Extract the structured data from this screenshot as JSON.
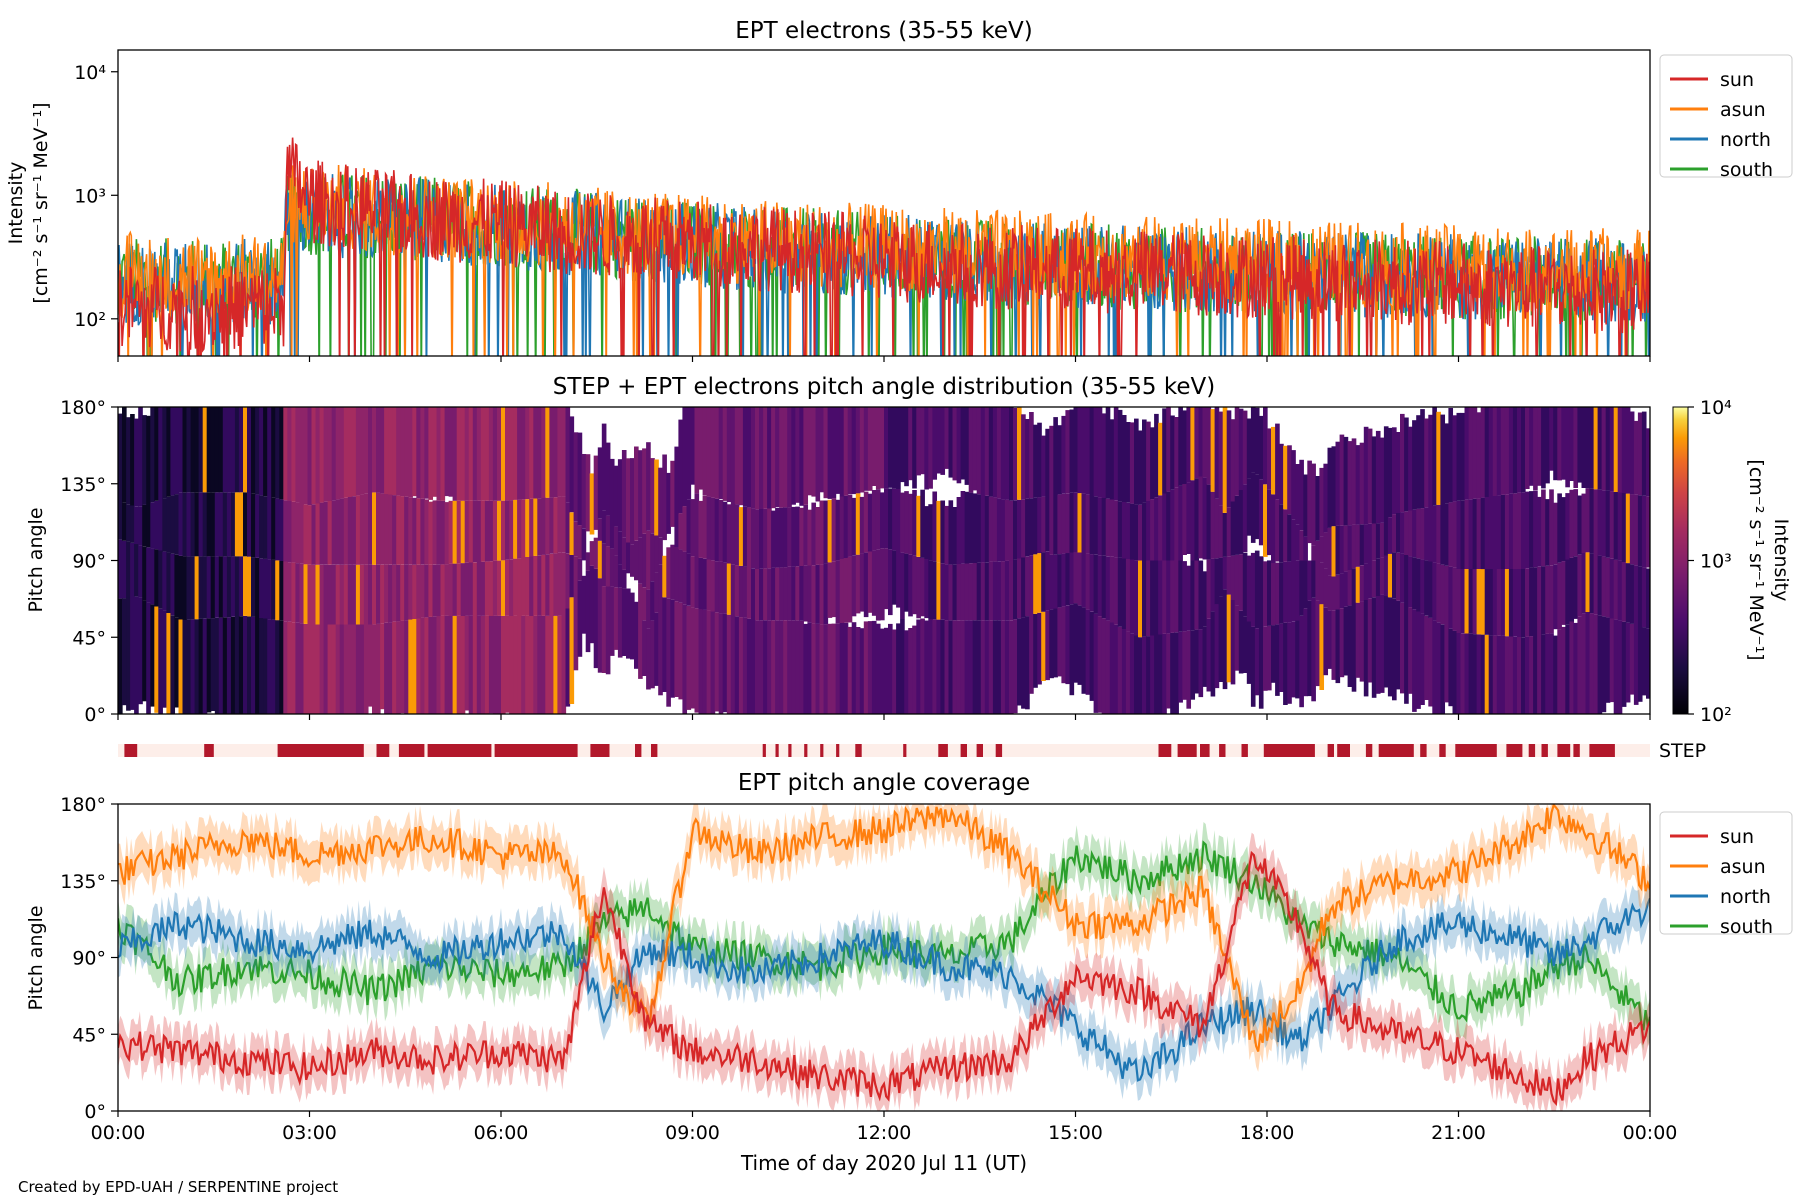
{
  "figure": {
    "credit": "Created by EPD-UAH / SERPENTINE project",
    "xlabel": "Time of day 2020 Jul 11 (UT)",
    "time_ticks": [
      "00:00",
      "03:00",
      "06:00",
      "09:00",
      "12:00",
      "15:00",
      "18:00",
      "21:00",
      "00:00"
    ]
  },
  "chart_data": [
    {
      "type": "line",
      "title": "EPT electrons (35-55 keV)",
      "ylabel": "Intensity",
      "ylabel_units": "[cm⁻² s⁻¹ sr⁻¹ MeV⁻¹]",
      "yscale": "log",
      "ylim": [
        50,
        15000
      ],
      "yticks": [
        {
          "value": 100,
          "label": "10²"
        },
        {
          "value": 1000,
          "label": "10³"
        },
        {
          "value": 10000,
          "label": "10⁴"
        }
      ],
      "xlim_hours": [
        0,
        24
      ],
      "legend": "outside-right",
      "series": [
        {
          "name": "sun",
          "color": "#d62728",
          "x_hours": [
            0,
            1,
            2,
            2.6,
            2.65,
            2.8,
            3,
            4,
            5,
            6,
            7,
            8,
            9,
            10,
            11,
            12,
            13,
            14,
            15,
            16,
            17,
            18,
            19,
            20,
            21,
            22,
            23,
            24
          ],
          "values": [
            130,
            120,
            125,
            130,
            1500,
            1300,
            900,
            750,
            650,
            600,
            500,
            450,
            420,
            380,
            340,
            300,
            280,
            260,
            250,
            240,
            230,
            220,
            210,
            200,
            190,
            180,
            170,
            160
          ]
        },
        {
          "name": "asun",
          "color": "#ff7f0e",
          "x_hours": [
            0,
            1,
            2,
            2.6,
            2.65,
            3,
            4,
            5,
            6,
            7,
            8,
            9,
            10,
            11,
            12,
            13,
            14,
            15,
            16,
            17,
            18,
            19,
            20,
            21,
            22,
            23,
            24
          ],
          "values": [
            230,
            220,
            220,
            220,
            900,
            850,
            750,
            680,
            620,
            560,
            500,
            460,
            420,
            400,
            380,
            360,
            340,
            320,
            310,
            300,
            290,
            280,
            270,
            260,
            250,
            245,
            240
          ]
        },
        {
          "name": "north",
          "color": "#1f77b4",
          "x_hours": [
            0,
            1,
            2,
            2.6,
            2.65,
            3,
            4,
            5,
            6,
            7,
            8,
            9,
            10,
            11,
            12,
            13,
            14,
            15,
            16,
            17,
            18,
            19,
            20,
            21,
            22,
            23,
            24
          ],
          "values": [
            200,
            190,
            200,
            200,
            700,
            680,
            650,
            620,
            560,
            500,
            450,
            400,
            370,
            340,
            320,
            300,
            280,
            270,
            260,
            250,
            240,
            230,
            225,
            220,
            210,
            205,
            200
          ]
        },
        {
          "name": "south",
          "color": "#2ca02c",
          "x_hours": [
            0,
            1,
            2,
            2.6,
            2.65,
            3,
            4,
            5,
            6,
            7,
            8,
            9,
            10,
            11,
            12,
            13,
            14,
            15,
            16,
            17,
            18,
            19,
            20,
            21,
            22,
            23,
            24
          ],
          "values": [
            210,
            200,
            205,
            210,
            750,
            720,
            680,
            640,
            580,
            520,
            460,
            410,
            380,
            350,
            320,
            300,
            285,
            270,
            260,
            250,
            240,
            230,
            225,
            215,
            210,
            205,
            200
          ]
        }
      ]
    },
    {
      "type": "heatmap",
      "title": "STEP + EPT electrons pitch angle distribution (35-55 keV)",
      "ylabel": "Pitch angle",
      "ylim": [
        0,
        180
      ],
      "yticks": [
        "0°",
        "45°",
        "90°",
        "135°",
        "180°"
      ],
      "colorbar": {
        "label": "Intensity",
        "units": "[cm⁻² s⁻¹ sr⁻¹ MeV⁻¹]",
        "scale": "log",
        "range": [
          100,
          10000
        ],
        "tick_labels": [
          "10²",
          "10³",
          "10⁴"
        ],
        "colormap": "inferno"
      }
    },
    {
      "type": "timeline",
      "label": "STEP",
      "on_color": "#b2182b",
      "off_color": "#fdeee9",
      "on_intervals_hours": [
        [
          0.1,
          0.3
        ],
        [
          1.35,
          1.5
        ],
        [
          2.5,
          3.85
        ],
        [
          4.05,
          4.25
        ],
        [
          4.4,
          4.8
        ],
        [
          4.85,
          5.85
        ],
        [
          5.9,
          7.2
        ],
        [
          7.4,
          7.7
        ],
        [
          8.1,
          8.2
        ],
        [
          8.35,
          8.45
        ],
        [
          10.1,
          10.15
        ],
        [
          10.3,
          10.35
        ],
        [
          10.5,
          10.55
        ],
        [
          10.75,
          10.8
        ],
        [
          11.0,
          11.05
        ],
        [
          11.25,
          11.3
        ],
        [
          11.55,
          11.65
        ],
        [
          12.3,
          12.35
        ],
        [
          12.85,
          13.0
        ],
        [
          13.2,
          13.3
        ],
        [
          13.45,
          13.55
        ],
        [
          13.75,
          13.85
        ],
        [
          16.3,
          16.5
        ],
        [
          16.6,
          16.9
        ],
        [
          16.95,
          17.1
        ],
        [
          17.25,
          17.35
        ],
        [
          17.6,
          17.7
        ],
        [
          17.95,
          18.75
        ],
        [
          18.95,
          19.05
        ],
        [
          19.1,
          19.3
        ],
        [
          19.55,
          19.65
        ],
        [
          19.75,
          20.3
        ],
        [
          20.4,
          20.5
        ],
        [
          20.7,
          20.8
        ],
        [
          20.95,
          21.6
        ],
        [
          21.75,
          22.0
        ],
        [
          22.1,
          22.2
        ],
        [
          22.3,
          22.4
        ],
        [
          22.55,
          22.75
        ],
        [
          22.8,
          22.9
        ],
        [
          23.05,
          23.45
        ]
      ]
    },
    {
      "type": "line",
      "title": "EPT pitch angle coverage",
      "ylabel": "Pitch angle",
      "ylim": [
        0,
        180
      ],
      "yticks": [
        "0°",
        "45°",
        "90°",
        "135°",
        "180°"
      ],
      "xlim_hours": [
        0,
        24
      ],
      "legend": "outside-right",
      "series": [
        {
          "name": "sun",
          "color": "#d62728",
          "x_hours": [
            0,
            1,
            2,
            3,
            4,
            5,
            6,
            7,
            7.6,
            8.3,
            9,
            10,
            11,
            12,
            13,
            14,
            15,
            16,
            17,
            17.8,
            18.5,
            19,
            20,
            21,
            22,
            22.5,
            23,
            24
          ],
          "values": [
            40,
            35,
            30,
            25,
            35,
            30,
            35,
            30,
            130,
            50,
            35,
            30,
            20,
            15,
            25,
            30,
            80,
            70,
            50,
            150,
            110,
            60,
            45,
            35,
            20,
            10,
            30,
            50
          ]
        },
        {
          "name": "asun",
          "color": "#ff7f0e",
          "x_hours": [
            0,
            1,
            2,
            3,
            4,
            5,
            6,
            7,
            7.6,
            8.3,
            9,
            10,
            11,
            12,
            13,
            14,
            15,
            16,
            17,
            17.8,
            18.5,
            19,
            20,
            21,
            22,
            22.5,
            23,
            24
          ],
          "values": [
            140,
            150,
            160,
            150,
            155,
            160,
            150,
            150,
            90,
            50,
            165,
            150,
            160,
            165,
            175,
            150,
            110,
            110,
            130,
            40,
            70,
            120,
            135,
            140,
            160,
            175,
            165,
            135
          ]
        },
        {
          "name": "north",
          "color": "#1f77b4",
          "x_hours": [
            0,
            1,
            2,
            3,
            4,
            5,
            6,
            7,
            7.6,
            8.3,
            9,
            10,
            11,
            12,
            13,
            14,
            15,
            16,
            17,
            17.8,
            18.5,
            19,
            20,
            21,
            22,
            22.5,
            23,
            24
          ],
          "values": [
            95,
            110,
            100,
            95,
            105,
            90,
            100,
            105,
            60,
            95,
            90,
            80,
            90,
            100,
            85,
            80,
            50,
            20,
            50,
            60,
            40,
            60,
            100,
            110,
            100,
            90,
            100,
            120
          ]
        },
        {
          "name": "south",
          "color": "#2ca02c",
          "x_hours": [
            0,
            1,
            2,
            3,
            4,
            5,
            6,
            7,
            7.6,
            8.3,
            9,
            10,
            11,
            12,
            13,
            14,
            15,
            16,
            17,
            17.8,
            18.5,
            19,
            20,
            21,
            22,
            22.5,
            23,
            24
          ],
          "values": [
            110,
            75,
            85,
            80,
            70,
            85,
            80,
            85,
            110,
            120,
            95,
            90,
            85,
            95,
            90,
            100,
            150,
            135,
            150,
            135,
            110,
            100,
            90,
            60,
            70,
            85,
            90,
            50
          ]
        }
      ]
    }
  ]
}
